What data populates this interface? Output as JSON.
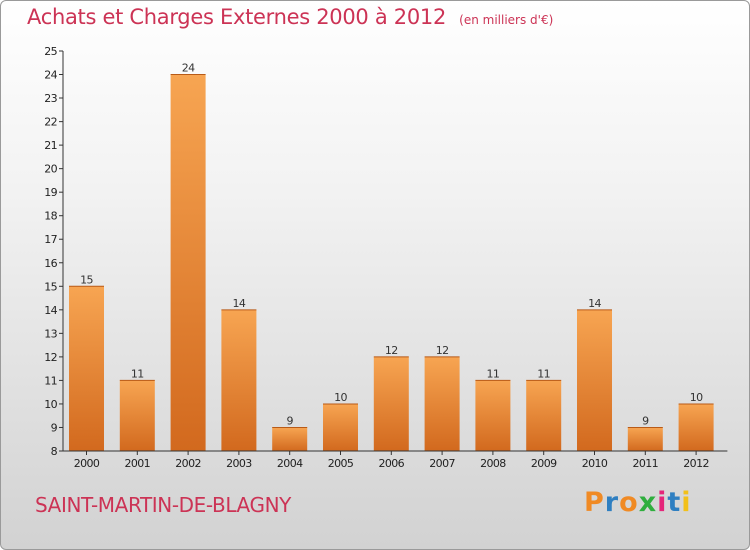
{
  "header": {
    "title": "Achats et Charges Externes 2000 à 2012",
    "unit": "(en milliers d'€)"
  },
  "footer": {
    "commune": "SAINT-MARTIN-DE-BLAGNY",
    "logo": "Proxiti"
  },
  "colors": {
    "title": "#cc3355",
    "bar_light": "#f7a552",
    "bar_dark": "#d2691e",
    "logo_letters": [
      "#f08a24",
      "#2f7fc1",
      "#f08a24",
      "#2fae3e",
      "#e5267a",
      "#2f7fc1",
      "#f2c019"
    ]
  },
  "chart_data": {
    "type": "bar",
    "title": "Achats et Charges Externes 2000 à 2012",
    "subtitle": "(en milliers d'€)",
    "categories": [
      "2000",
      "2001",
      "2002",
      "2003",
      "2004",
      "2005",
      "2006",
      "2007",
      "2008",
      "2009",
      "2010",
      "2011",
      "2012"
    ],
    "values": [
      15,
      11,
      24,
      14,
      9,
      10,
      12,
      12,
      11,
      11,
      14,
      9,
      10
    ],
    "ylim": [
      8,
      25
    ],
    "yticks": [
      8,
      9,
      10,
      11,
      12,
      13,
      14,
      15,
      16,
      17,
      18,
      19,
      20,
      21,
      22,
      23,
      24,
      25
    ],
    "grid": false,
    "data_labels": true
  }
}
